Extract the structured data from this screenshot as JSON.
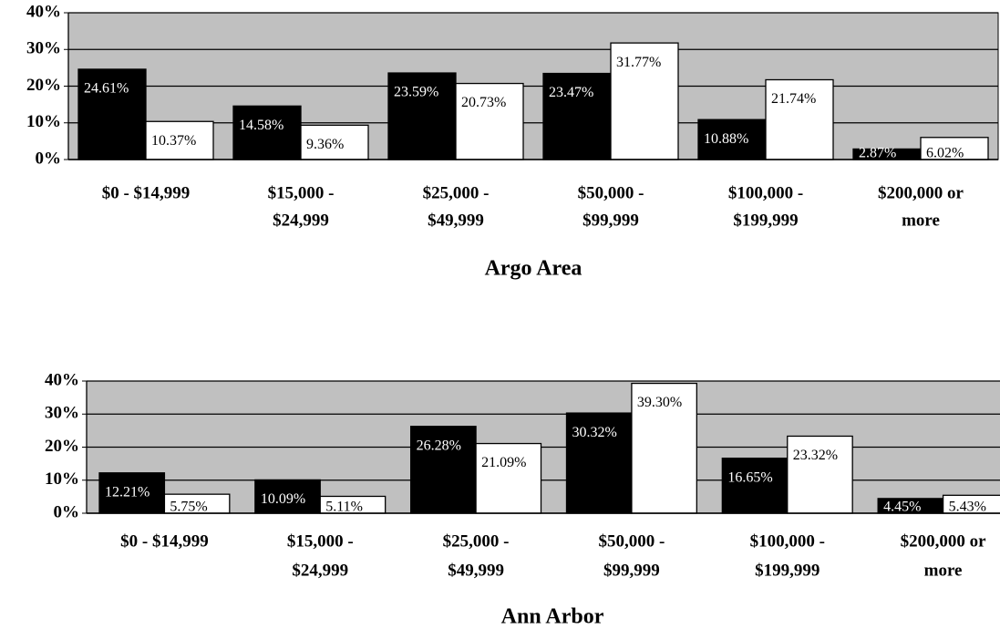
{
  "chart_data": [
    {
      "type": "bar",
      "title": "Argo Area",
      "categories": [
        [
          "$0 - $14,999"
        ],
        [
          "$15,000 -",
          "$24,999"
        ],
        [
          "$25,000 -",
          "$49,999"
        ],
        [
          "$50,000 -",
          "$99,999"
        ],
        [
          "$100,000 -",
          "$199,999"
        ],
        [
          "$200,000 or",
          "more"
        ]
      ],
      "series": [
        {
          "color": "#000000",
          "values": [
            24.61,
            14.58,
            23.59,
            23.47,
            10.88,
            2.87
          ],
          "value_labels": [
            "24.61%",
            "14.58%",
            "23.59%",
            "23.47%",
            "10.88%",
            "2.87%"
          ]
        },
        {
          "color": "#ffffff",
          "values": [
            10.37,
            9.36,
            20.73,
            31.77,
            21.74,
            6.02
          ],
          "value_labels": [
            "10.37%",
            "9.36%",
            "20.73%",
            "31.77%",
            "21.74%",
            "6.02%"
          ]
        }
      ],
      "ylim": [
        0,
        40
      ],
      "yticks": [
        {
          "value": 0,
          "label": "0%"
        },
        {
          "value": 10,
          "label": "10%"
        },
        {
          "value": 20,
          "label": "20%"
        },
        {
          "value": 30,
          "label": "30%"
        },
        {
          "value": 40,
          "label": "40%"
        }
      ],
      "grid": true
    },
    {
      "type": "bar",
      "title": "Ann Arbor",
      "categories": [
        [
          "$0 - $14,999"
        ],
        [
          "$15,000 -",
          "$24,999"
        ],
        [
          "$25,000 -",
          "$49,999"
        ],
        [
          "$50,000 -",
          "$99,999"
        ],
        [
          "$100,000 -",
          "$199,999"
        ],
        [
          "$200,000 or",
          "more"
        ]
      ],
      "series": [
        {
          "color": "#000000",
          "values": [
            12.21,
            10.09,
            26.28,
            30.32,
            16.65,
            4.45
          ],
          "value_labels": [
            "12.21%",
            "10.09%",
            "26.28%",
            "30.32%",
            "16.65%",
            "4.45%"
          ]
        },
        {
          "color": "#ffffff",
          "values": [
            5.75,
            5.11,
            21.09,
            39.3,
            23.32,
            5.43
          ],
          "value_labels": [
            "5.75%",
            "5.11%",
            "21.09%",
            "39.30%",
            "23.32%",
            "5.43%"
          ]
        }
      ],
      "ylim": [
        0,
        40
      ],
      "yticks": [
        {
          "value": 0,
          "label": "0%"
        },
        {
          "value": 10,
          "label": "10%"
        },
        {
          "value": 20,
          "label": "20%"
        },
        {
          "value": 30,
          "label": "30%"
        },
        {
          "value": 40,
          "label": "40%"
        }
      ],
      "grid": true
    }
  ]
}
